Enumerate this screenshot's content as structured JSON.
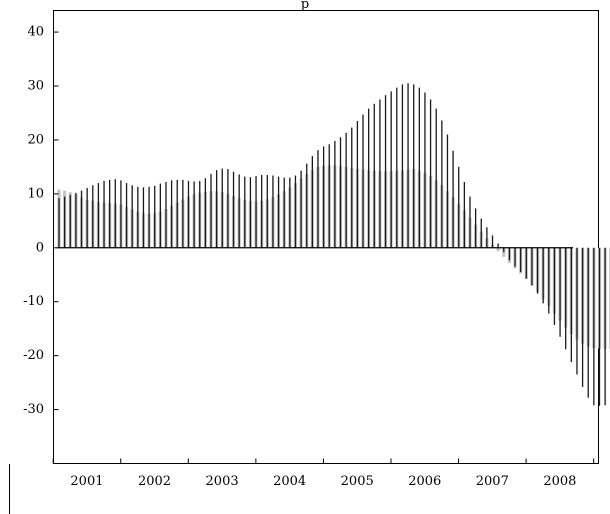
{
  "chart_data": {
    "type": "bar",
    "title": "p",
    "xlabel": "",
    "ylabel": "",
    "ylim": [
      -40,
      44
    ],
    "yticks": [
      40,
      30,
      20,
      10,
      0,
      -10,
      -20,
      -30
    ],
    "year_labels": [
      "2001",
      "2002",
      "2003",
      "2004",
      "2005",
      "2006",
      "2007",
      "2008"
    ],
    "x_start": "2001-01",
    "months_per_year": 12,
    "grid": false,
    "legend": "none",
    "colors": {
      "series_black": "#1a1a1a",
      "series_gray": "#c4c4c4",
      "axis": "#000000"
    },
    "series": [
      {
        "values": [
          9.2,
          9.5,
          9.8,
          10.2,
          10.6,
          11.1,
          11.6,
          12.0,
          12.4,
          12.6,
          12.7,
          12.5,
          12.0,
          11.6,
          11.3,
          11.2,
          11.3,
          11.5,
          11.9,
          12.2,
          12.5,
          12.6,
          12.6,
          12.4,
          12.3,
          12.4,
          12.9,
          13.7,
          14.4,
          14.7,
          14.6,
          14.1,
          13.6,
          13.2,
          13.1,
          13.3,
          13.5,
          13.5,
          13.4,
          13.2,
          13.0,
          13.0,
          13.4,
          14.3,
          15.6,
          17.0,
          18.1,
          18.8,
          19.2,
          19.8,
          20.5,
          21.3,
          22.3,
          23.5,
          24.7,
          25.8,
          26.7,
          27.5,
          28.3,
          29.0,
          29.7,
          30.3,
          30.5,
          30.3,
          29.7,
          28.8,
          27.5,
          25.8,
          23.6,
          21.0,
          18.0,
          15.0,
          12.2,
          9.5,
          7.3,
          5.4,
          3.8,
          2.3,
          0.8,
          -0.8,
          -2.3,
          -3.5,
          -4.5,
          -5.7,
          -7.0,
          -8.5,
          -10.3,
          -12.2,
          -14.3,
          -16.5,
          -18.8,
          -21.2,
          -23.5,
          -25.8,
          -27.8,
          -29.2,
          -29.3,
          -29.2,
          -29.2
        ]
      },
      {
        "values": [
          10.8,
          10.6,
          10.3,
          9.9,
          9.3,
          8.9,
          8.7,
          8.5,
          8.4,
          8.3,
          8.2,
          8.0,
          7.6,
          7.1,
          6.7,
          6.4,
          6.3,
          6.4,
          6.7,
          7.2,
          7.8,
          8.4,
          9.0,
          9.5,
          9.9,
          10.2,
          10.4,
          10.5,
          10.5,
          10.3,
          10.0,
          9.6,
          9.2,
          8.9,
          8.7,
          8.6,
          8.7,
          9.0,
          9.4,
          9.9,
          10.5,
          11.2,
          12.0,
          12.9,
          13.7,
          14.5,
          15.0,
          15.2,
          15.3,
          15.3,
          15.2,
          15.0,
          14.8,
          14.6,
          14.5,
          14.4,
          14.3,
          14.2,
          14.2,
          14.2,
          14.3,
          14.4,
          14.5,
          14.6,
          14.3,
          13.9,
          13.3,
          12.5,
          11.6,
          10.5,
          9.4,
          8.1,
          6.9,
          5.6,
          4.3,
          3.0,
          1.8,
          0.6,
          -0.6,
          -1.7,
          -2.8,
          -3.8,
          -4.8,
          -5.8,
          -7.0,
          -8.2,
          -9.5,
          -10.8,
          -12.2,
          -13.5,
          -14.8,
          -16.0,
          -17.0,
          -17.8,
          -18.3,
          -18.6,
          -18.7,
          -18.7,
          -18.7
        ]
      }
    ]
  }
}
